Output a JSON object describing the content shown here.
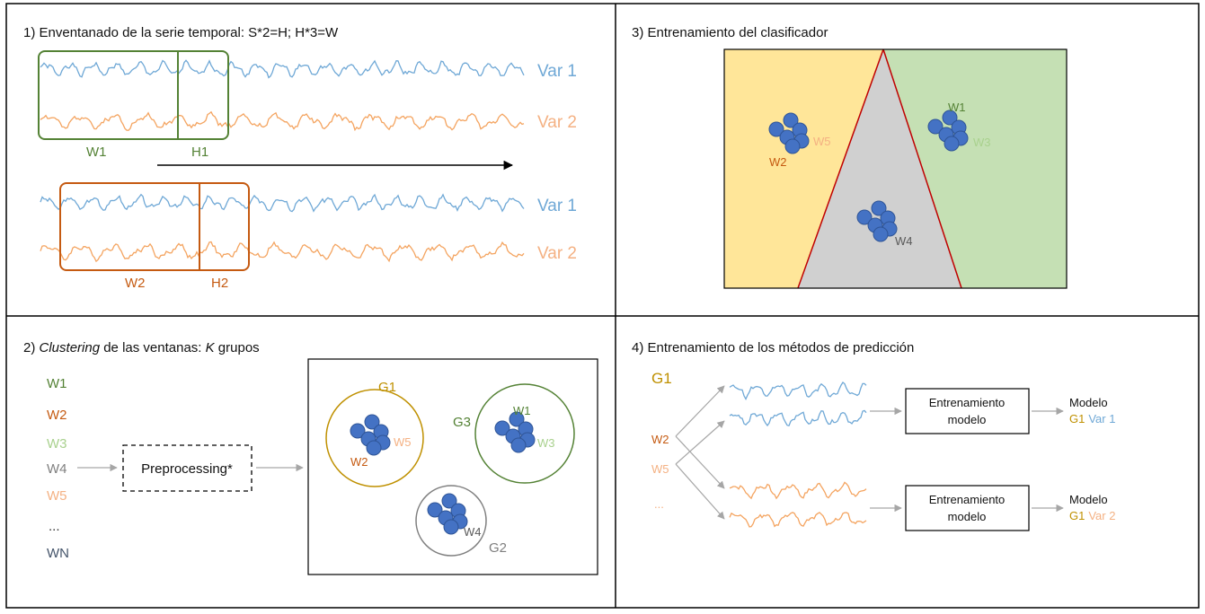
{
  "panels": {
    "p1": {
      "title": "1) Enventanado de la serie temporal: S*2=H; H*3=W"
    },
    "p2": {
      "title_prefix": "2) ",
      "title_italic1": "Clustering",
      "title_mid": " de las ventanas: ",
      "title_italic2": "K",
      "title_suffix": " grupos"
    },
    "p3": {
      "title": "3) Entrenamiento del clasificador"
    },
    "p4": {
      "title": "4) Entrenamiento de los métodos de predicción"
    }
  },
  "windowing": {
    "var1": "Var 1",
    "var2": "Var 2",
    "top": {
      "w": "W1",
      "h": "H1"
    },
    "bottom": {
      "w": "W2",
      "h": "H2"
    }
  },
  "clustering": {
    "window_list": [
      "W1",
      "W2",
      "W3",
      "W4",
      "W5",
      "...",
      "WN"
    ],
    "preprocessing": "Preprocessing*",
    "clusters": {
      "g1": {
        "name": "G1",
        "a": "W2",
        "b": "W5"
      },
      "g3": {
        "name": "G3",
        "a": "W1",
        "b": "W3"
      },
      "g2": {
        "name": "G2",
        "a": "W4"
      }
    }
  },
  "classifier": {
    "left": {
      "a": "W2",
      "b": "W5"
    },
    "right": {
      "a": "W1",
      "b": "W3"
    },
    "center": {
      "a": "W4"
    }
  },
  "prediction": {
    "group": "G1",
    "inputs": [
      "W2",
      "W5",
      "..."
    ],
    "box1": {
      "line1": "Entrenamiento",
      "line2": "modelo"
    },
    "box2": {
      "line1": "Entrenamiento",
      "line2": "modelo"
    },
    "out1": {
      "title": "Modelo",
      "group": "G1",
      "var": "Var 1"
    },
    "out2": {
      "title": "Modelo",
      "group": "G1",
      "var": "Var 2"
    }
  },
  "colors": {
    "green": "#548235",
    "orange": "#C55A11",
    "light_green": "#A9D18E",
    "light_orange": "#F4B183",
    "gray": "#7F7F7F",
    "navy": "#44546A",
    "gold": "#BF9000",
    "blue_series": "#6FA8D6",
    "orange_series": "#F4A460",
    "dot_fill": "#4472C4",
    "dot_stroke": "#2F5597",
    "region_yellow": "#FFE699",
    "region_green": "#C5E0B4",
    "region_gray": "#D0D0D0",
    "divider_red": "#C00000"
  }
}
